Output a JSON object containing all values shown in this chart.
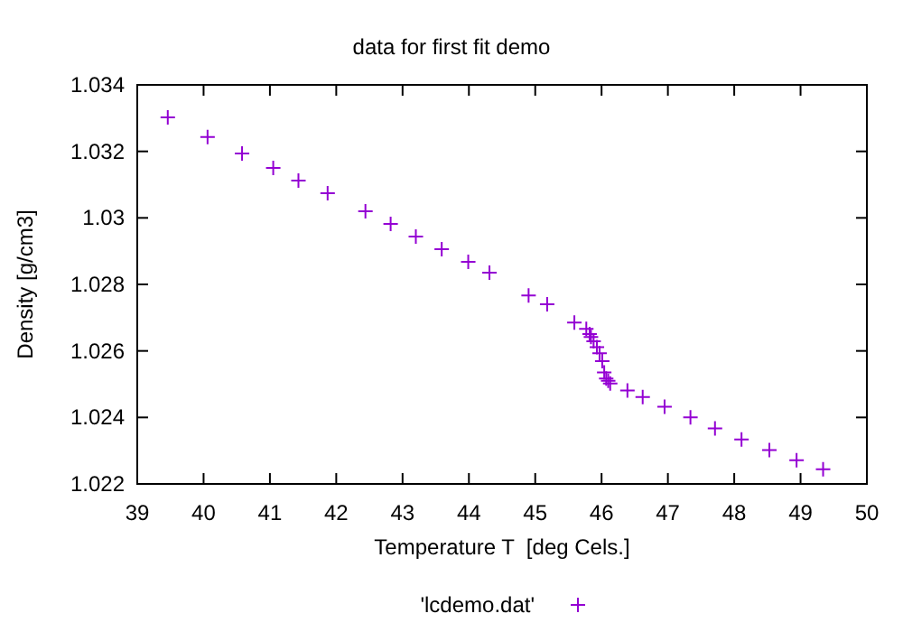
{
  "chart_data": {
    "type": "scatter",
    "title": "data for first fit demo",
    "xlabel": "Temperature T  [deg Cels.]",
    "ylabel": "Density [g/cm3]",
    "xlim": [
      39,
      50
    ],
    "xticks": [
      39,
      40,
      41,
      42,
      43,
      44,
      45,
      46,
      47,
      48,
      49,
      50
    ],
    "ylim": [
      1.022,
      1.034
    ],
    "yticks": [
      1.022,
      1.024,
      1.026,
      1.028,
      1.03,
      1.032,
      1.034
    ],
    "grid": false,
    "legend": "bottom",
    "marker": "cross",
    "series": [
      {
        "name": "'lcdemo.dat'",
        "color": "#9400d3",
        "x": [
          39.46,
          40.06,
          40.58,
          41.05,
          41.43,
          41.87,
          42.44,
          42.82,
          43.2,
          43.59,
          43.99,
          44.31,
          44.9,
          45.18,
          45.59,
          45.77,
          45.82,
          45.84,
          45.88,
          45.93,
          45.97,
          46.01,
          46.04,
          46.07,
          46.1,
          46.13,
          46.39,
          46.62,
          46.95,
          47.34,
          47.71,
          48.11,
          48.53,
          48.94,
          49.34
        ],
        "values": [
          1.03302,
          1.03243,
          1.03194,
          1.0315,
          1.03112,
          1.03074,
          1.0302,
          1.02982,
          1.02944,
          1.02906,
          1.02868,
          1.02835,
          1.02767,
          1.0274,
          1.02685,
          1.02666,
          1.02651,
          1.02642,
          1.02629,
          1.02611,
          1.02593,
          1.02569,
          1.02535,
          1.02517,
          1.0251,
          1.02502,
          1.02481,
          1.02461,
          1.02432,
          1.024,
          1.02367,
          1.02334,
          1.02302,
          1.02271,
          1.02244
        ]
      }
    ]
  }
}
